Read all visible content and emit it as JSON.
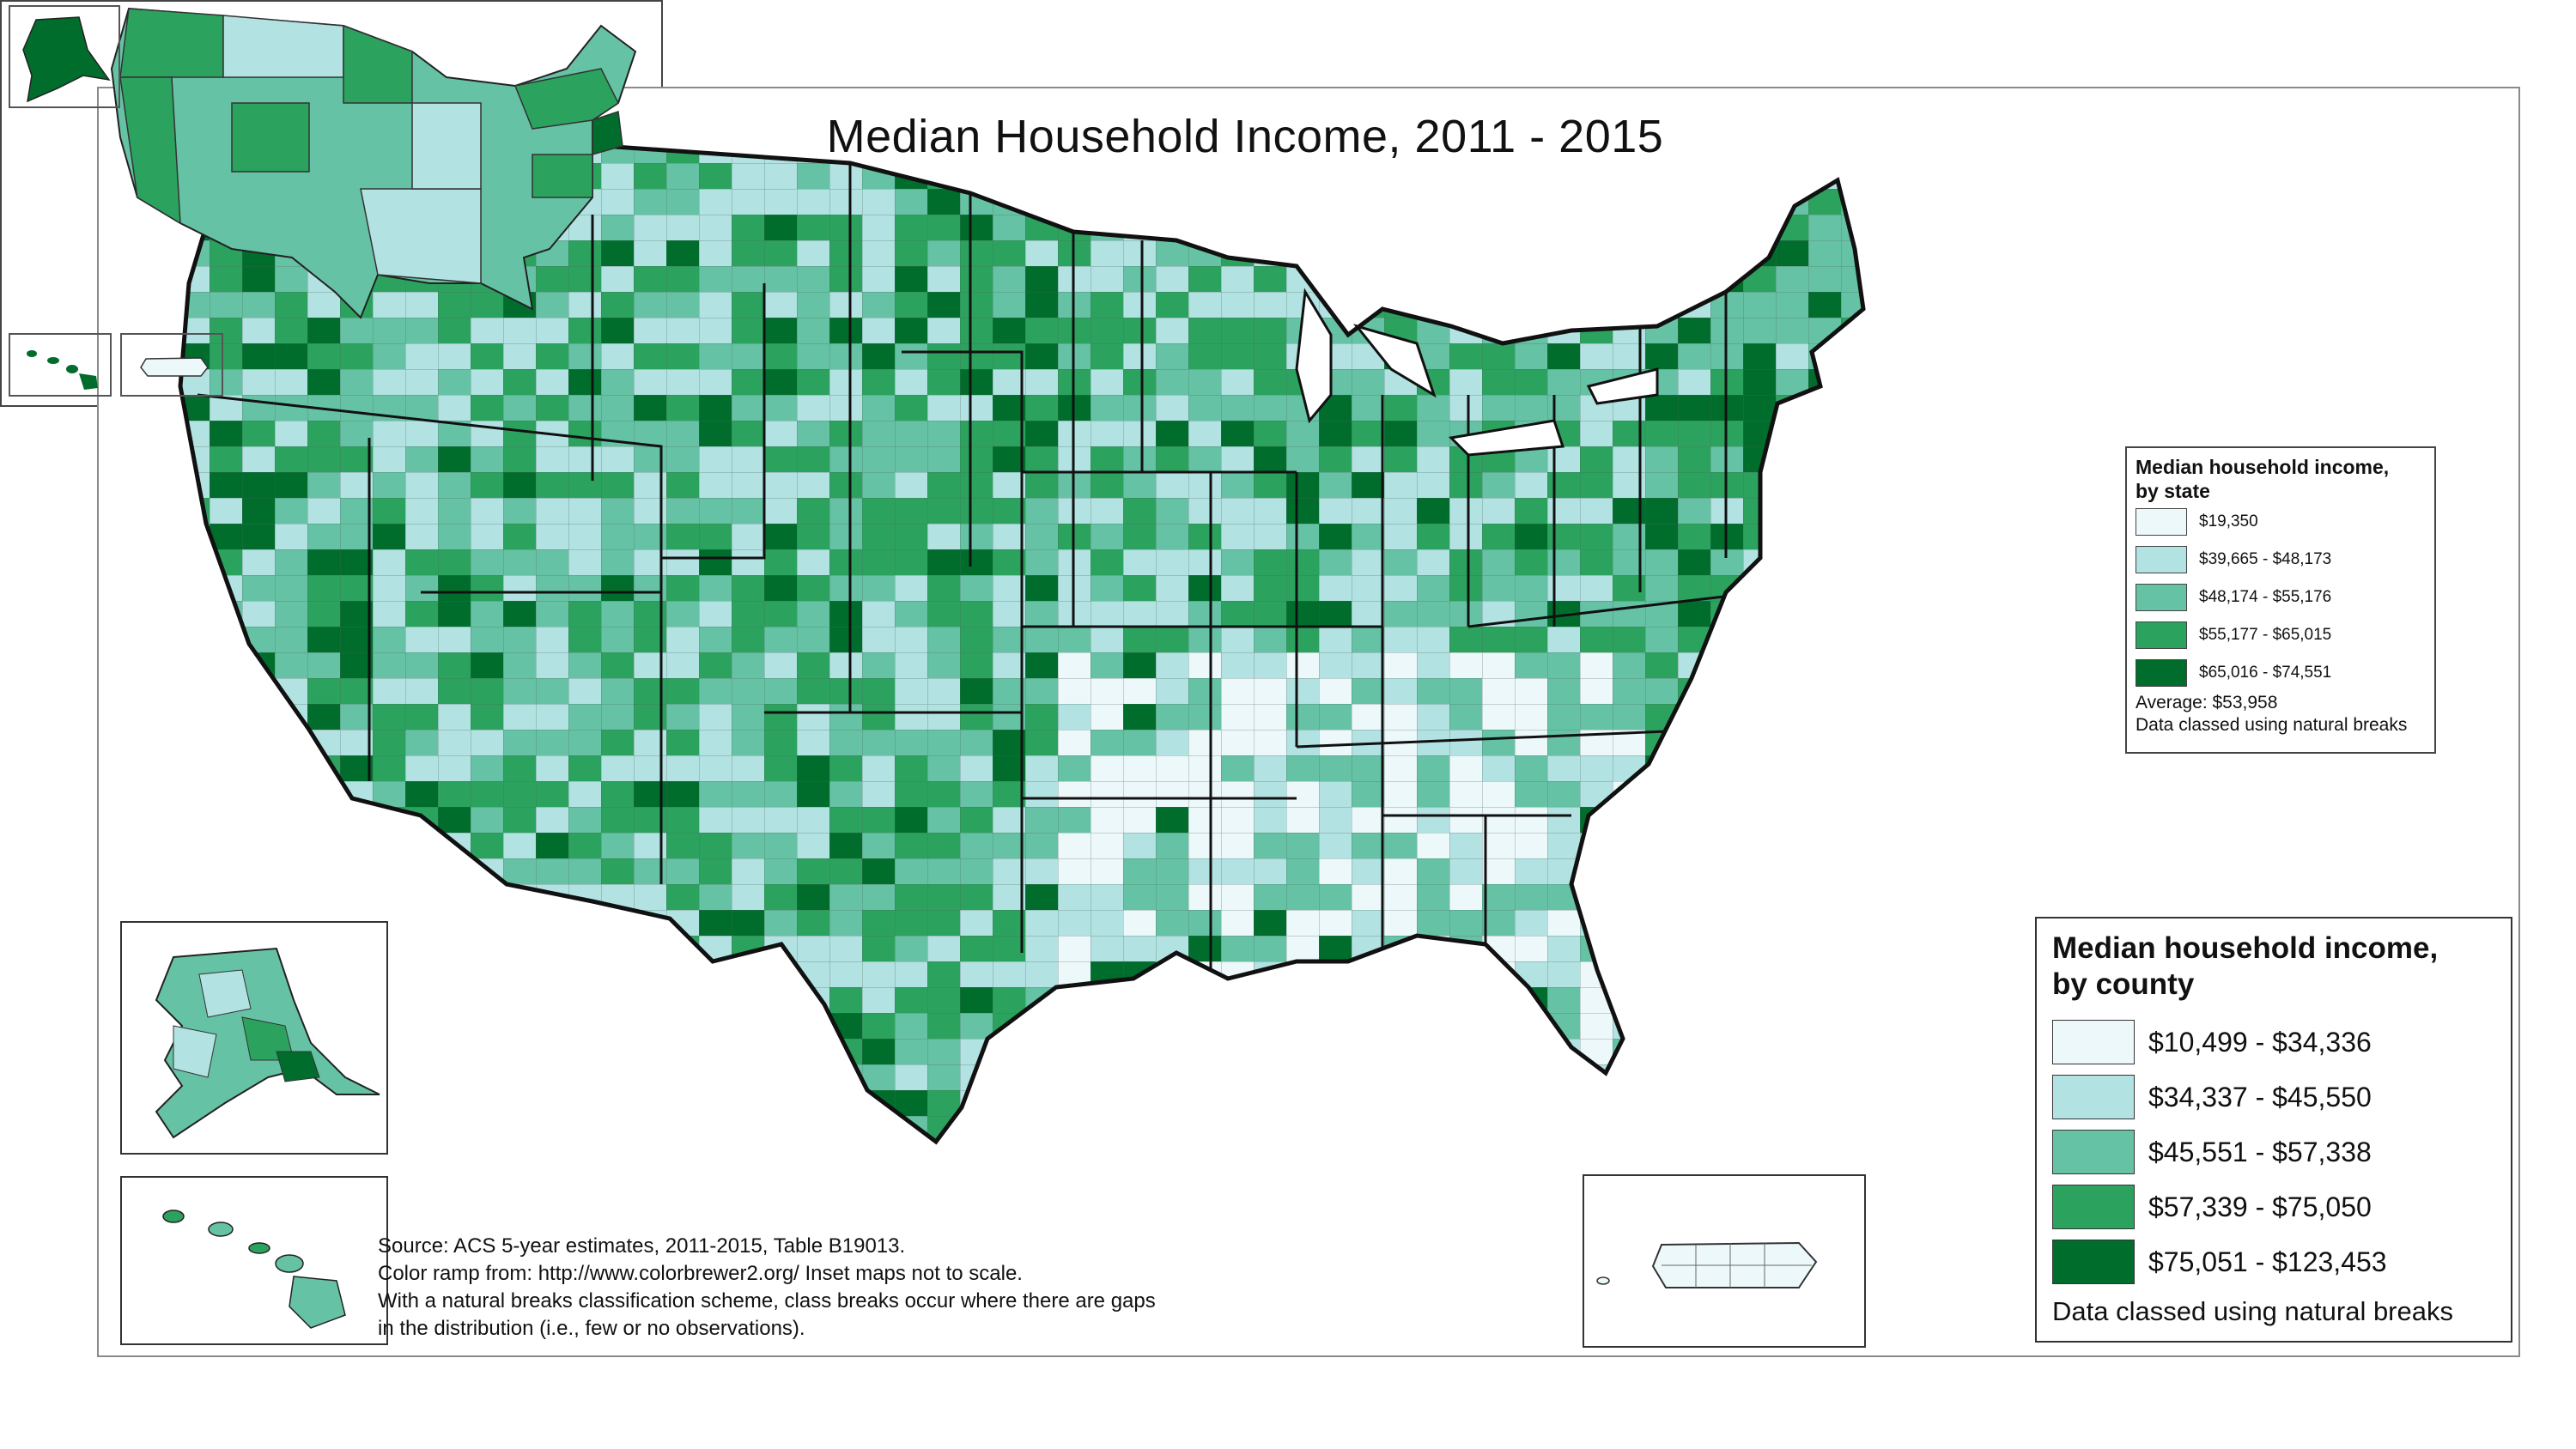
{
  "title": "Median Household Income, 2011 - 2015",
  "colors": {
    "class1": "#edf8fb",
    "class2": "#b2e2e2",
    "class3": "#66c2a4",
    "class4": "#2ca25f",
    "class5": "#006d2c",
    "state_border": "#111111",
    "county_border": "#555555"
  },
  "legend_county": {
    "title": "Median household income, by county",
    "title_line1": "Median household income,",
    "title_line2": "by county",
    "classes": [
      {
        "label": "$10,499 - $34,336",
        "color": "#edf8fb"
      },
      {
        "label": "$34,337 - $45,550",
        "color": "#b2e2e2"
      },
      {
        "label": "$45,551 - $57,338",
        "color": "#66c2a4"
      },
      {
        "label": "$57,339 - $75,050",
        "color": "#2ca25f"
      },
      {
        "label": "$75,051 - $123,453",
        "color": "#006d2c"
      }
    ],
    "note": "Data classed using natural breaks"
  },
  "legend_state": {
    "title_line1": "Median household income,",
    "title_line2": "by state",
    "classes": [
      {
        "label": "$19,350",
        "color": "#edf8fb"
      },
      {
        "label": "$39,665 - $48,173",
        "color": "#b2e2e2"
      },
      {
        "label": "$48,174 - $55,176",
        "color": "#66c2a4"
      },
      {
        "label": "$55,177 - $65,015",
        "color": "#2ca25f"
      },
      {
        "label": "$65,016 - $74,551",
        "color": "#006d2c"
      }
    ],
    "average": "Average: $53,958",
    "note": "Data classed using natural breaks"
  },
  "source": {
    "line1": "Source: ACS 5-year estimates, 2011-2015, Table B19013.",
    "line2": "Color ramp from: http://www.colorbrewer2.org/  Inset maps not to scale.",
    "line3": "With a natural breaks classification scheme, class breaks occur where there are gaps",
    "line4": "in the distribution (i.e., few or no observations)."
  },
  "insets": [
    "alaska",
    "hawaii",
    "puerto-rico",
    "state-map"
  ]
}
